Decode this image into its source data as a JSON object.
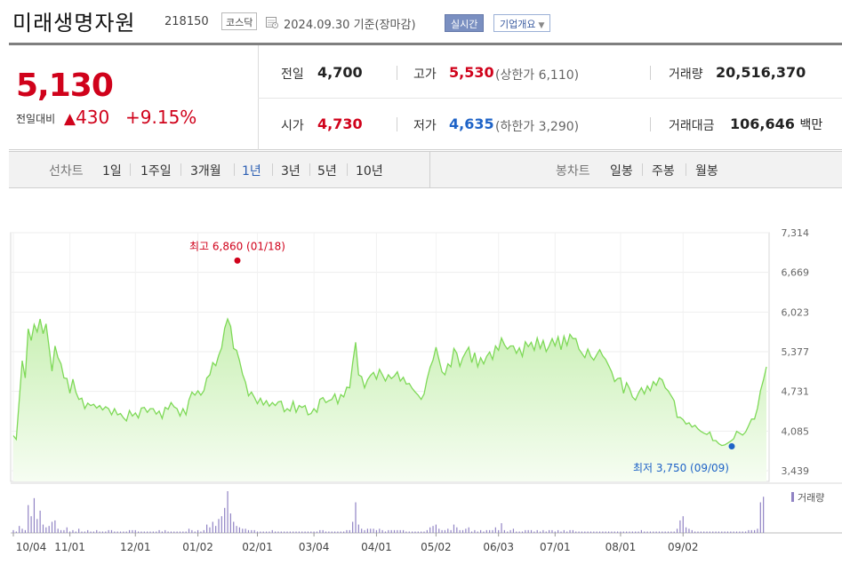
{
  "header": {
    "title": "미래생명자원",
    "code": "218150",
    "market": "코스닥",
    "date": "2024.09.30",
    "basis": "기준(장마감)",
    "realtime_label": "실시간",
    "overview_label": "기업개요"
  },
  "summary": {
    "price": "5,130",
    "prev_compare_label": "전일대비",
    "change_arrow": "▲",
    "change": "430",
    "change_pct": "+9.15%",
    "prev_close_label": "전일",
    "prev_close": "4,700",
    "open_label": "시가",
    "open": "4,730",
    "high_label": "고가",
    "high": "5,530",
    "upper_limit_label": "(상한가",
    "upper_limit": "6,110)",
    "low_label": "저가",
    "low": "4,635",
    "lower_limit_label": "(하한가",
    "lower_limit": "3,290)",
    "volume_label": "거래량",
    "volume": "20,516,370",
    "amount_label": "거래대금",
    "amount": "106,646",
    "amount_unit": "백만"
  },
  "period_bar": {
    "line_chart_label": "선차트",
    "periods": [
      "1일",
      "1주일",
      "3개월",
      "1년",
      "3년",
      "5년",
      "10년"
    ],
    "active_period": "1년",
    "candle_chart_label": "봉차트",
    "candles": [
      "일봉",
      "주봉",
      "월봉"
    ]
  },
  "colors": {
    "up": "#d0021b",
    "down": "#1e63c7",
    "line": "#7ed957",
    "volume": "#9083c4"
  },
  "chart_data": {
    "type": "area",
    "y_ticks": [
      "7,314",
      "6,669",
      "6,023",
      "5,377",
      "4,731",
      "4,085",
      "3,439"
    ],
    "ylim": [
      3439,
      7314
    ],
    "x_ticks": [
      "10/04",
      "11/01",
      "12/01",
      "01/02",
      "02/01",
      "03/04",
      "04/01",
      "05/02",
      "06/03",
      "07/01",
      "08/01",
      "09/02"
    ],
    "high_annotation": "최고 6,860 (01/18)",
    "low_annotation": "최저 3,750 (09/09)",
    "high_marker": {
      "index": 73,
      "value": 6860
    },
    "low_marker": {
      "index": 234,
      "value": 3750
    },
    "volume_legend": "거래량",
    "prices": [
      4010,
      3950,
      4600,
      5230,
      4950,
      5750,
      5560,
      5820,
      5700,
      5910,
      5670,
      5830,
      5450,
      5060,
      5470,
      5280,
      5180,
      4950,
      4940,
      4700,
      4930,
      4720,
      4600,
      4620,
      4450,
      4540,
      4500,
      4520,
      4460,
      4500,
      4430,
      4480,
      4450,
      4350,
      4450,
      4350,
      4370,
      4300,
      4250,
      4420,
      4330,
      4380,
      4300,
      4460,
      4470,
      4390,
      4450,
      4450,
      4360,
      4410,
      4290,
      4470,
      4440,
      4550,
      4480,
      4450,
      4330,
      4450,
      4350,
      4590,
      4720,
      4670,
      4740,
      4670,
      4740,
      4950,
      5000,
      5200,
      5150,
      5320,
      5440,
      5760,
      5910,
      5790,
      5430,
      5400,
      5230,
      5010,
      4880,
      4660,
      4720,
      4630,
      4530,
      4620,
      4510,
      4580,
      4490,
      4550,
      4500,
      4560,
      4570,
      4400,
      4450,
      4410,
      4570,
      4390,
      4500,
      4470,
      4500,
      4350,
      4370,
      4450,
      4390,
      4600,
      4630,
      4550,
      4580,
      4600,
      4690,
      4530,
      4680,
      4640,
      4800,
      4790,
      5200,
      5530,
      5000,
      4970,
      4790,
      4920,
      4990,
      5040,
      4930,
      5090,
      5000,
      4900,
      5000,
      4940,
      4980,
      5050,
      4900,
      4960,
      4850,
      4860,
      4780,
      4720,
      4670,
      4600,
      4690,
      4930,
      5120,
      5240,
      5450,
      5250,
      5050,
      5000,
      5180,
      5130,
      5430,
      5350,
      5140,
      5280,
      5370,
      5450,
      5200,
      5360,
      5130,
      5280,
      5180,
      5300,
      5370,
      5250,
      5470,
      5400,
      5600,
      5490,
      5420,
      5470,
      5470,
      5350,
      5440,
      5300,
      5540,
      5460,
      5530,
      5400,
      5600,
      5430,
      5560,
      5380,
      5470,
      5590,
      5470,
      5620,
      5410,
      5630,
      5480,
      5660,
      5590,
      5590,
      5420,
      5350,
      5280,
      5420,
      5300,
      5240,
      5330,
      5410,
      5310,
      5250,
      5150,
      5050,
      4890,
      4940,
      4950,
      4700,
      4870,
      4780,
      4640,
      4590,
      4700,
      4790,
      4690,
      4820,
      4740,
      4890,
      4830,
      4950,
      4920,
      4790,
      4740,
      4660,
      4580,
      4310,
      4310,
      4270,
      4200,
      4220,
      4150,
      4180,
      4120,
      4080,
      4050,
      4030,
      4070,
      3930,
      3930,
      3880,
      3850,
      3860,
      3890,
      3920,
      3960,
      4080,
      4050,
      4020,
      4070,
      4170,
      4280,
      4280,
      4460,
      4740,
      4920,
      5130
    ],
    "volumes": [
      2,
      1,
      5,
      3,
      2,
      20,
      12,
      25,
      10,
      16,
      6,
      4,
      5,
      8,
      9,
      3,
      2,
      2,
      4,
      1,
      2,
      1,
      3,
      1,
      1,
      2,
      1,
      1,
      2,
      1,
      1,
      1,
      2,
      2,
      1,
      1,
      1,
      1,
      1,
      2,
      2,
      2,
      1,
      1,
      1,
      1,
      1,
      1,
      1,
      2,
      1,
      2,
      1,
      1,
      1,
      1,
      1,
      1,
      1,
      3,
      2,
      1,
      2,
      1,
      2,
      6,
      4,
      8,
      5,
      10,
      12,
      18,
      30,
      14,
      8,
      5,
      4,
      3,
      3,
      2,
      2,
      2,
      1,
      1,
      1,
      1,
      1,
      2,
      1,
      1,
      1,
      1,
      1,
      1,
      1,
      1,
      1,
      1,
      1,
      1,
      1,
      1,
      1,
      2,
      2,
      1,
      1,
      1,
      1,
      1,
      1,
      1,
      2,
      2,
      8,
      22,
      6,
      3,
      2,
      3,
      3,
      3,
      2,
      3,
      2,
      1,
      2,
      2,
      2,
      2,
      2,
      2,
      1,
      1,
      1,
      1,
      1,
      1,
      1,
      2,
      4,
      5,
      6,
      3,
      2,
      2,
      3,
      2,
      6,
      4,
      2,
      2,
      3,
      4,
      1,
      2,
      1,
      2,
      1,
      2,
      2,
      2,
      4,
      2,
      7,
      2,
      1,
      2,
      3,
      1,
      1,
      1,
      2,
      2,
      2,
      1,
      2,
      1,
      2,
      1,
      2,
      2,
      1,
      2,
      1,
      2,
      1,
      2,
      2,
      1,
      1,
      1,
      1,
      1,
      1,
      1,
      1,
      1,
      1,
      1,
      1,
      1,
      1,
      1,
      1,
      1,
      1,
      1,
      1,
      1,
      1,
      2,
      1,
      1,
      1,
      1,
      1,
      1,
      1,
      1,
      1,
      1,
      1,
      3,
      9,
      12,
      4,
      3,
      2,
      1,
      1,
      1,
      1,
      1,
      1,
      1,
      1,
      1,
      1,
      1,
      1,
      1,
      1,
      1,
      1,
      1,
      1,
      2,
      2,
      2,
      3,
      22,
      26
    ]
  }
}
